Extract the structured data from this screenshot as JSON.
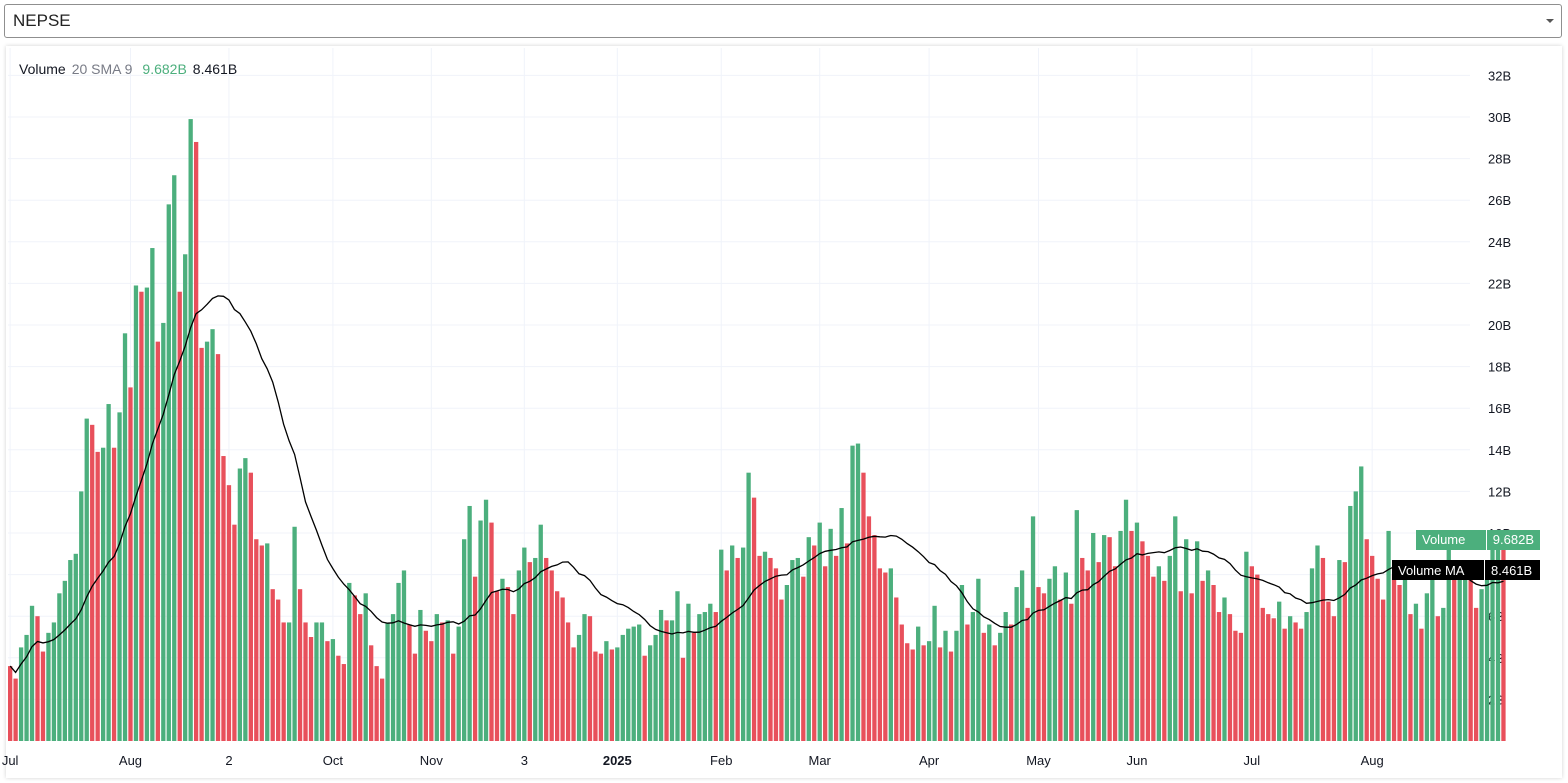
{
  "selector": {
    "value": "NEPSE",
    "icon": "chevron-down-icon"
  },
  "legend": {
    "title": "Volume",
    "params": "20 SMA 9",
    "volume_value": "9.682B",
    "ma_value": "8.461B"
  },
  "labels": {
    "volume_label": "Volume",
    "volume_value": "9.682B",
    "ma_label": "Volume MA",
    "ma_value": "8.461B"
  },
  "colors": {
    "up": "#4caf7d",
    "down": "#e8505b",
    "ma_line": "#000000",
    "grid": "#f0f3fa",
    "ma_label_bg": "#000000"
  },
  "chart_data": {
    "type": "bar",
    "title": "Volume",
    "ylim": [
      0,
      32
    ],
    "y_unit": "B",
    "y_ticks": [
      "2B",
      "4B",
      "6B",
      "8B",
      "10B",
      "12B",
      "14B",
      "16B",
      "18B",
      "20B",
      "22B",
      "24B",
      "26B",
      "28B",
      "30B",
      "32B"
    ],
    "x_ticks": [
      {
        "label": "Jul",
        "index": 0
      },
      {
        "label": "Aug",
        "index": 22
      },
      {
        "label": "2",
        "index": 40
      },
      {
        "label": "Oct",
        "index": 59
      },
      {
        "label": "Nov",
        "index": 77
      },
      {
        "label": "3",
        "index": 94
      },
      {
        "label": "2025",
        "index": 111,
        "bold": true
      },
      {
        "label": "Feb",
        "index": 130
      },
      {
        "label": "Mar",
        "index": 148
      },
      {
        "label": "Apr",
        "index": 168
      },
      {
        "label": "May",
        "index": 188
      },
      {
        "label": "Jun",
        "index": 206
      },
      {
        "label": "Jul",
        "index": 227
      },
      {
        "label": "Aug",
        "index": 249
      }
    ],
    "grid": true,
    "series": [
      {
        "name": "Volume",
        "values": [
          3.6,
          3.0,
          4.5,
          5.1,
          6.5,
          6.0,
          4.3,
          5.2,
          5.7,
          7.1,
          7.7,
          8.7,
          9.0,
          12.0,
          15.5,
          15.2,
          13.9,
          14.1,
          16.2,
          14.1,
          15.8,
          19.6,
          17.0,
          21.9,
          21.6,
          21.8,
          23.7,
          19.2,
          20.1,
          25.8,
          27.2,
          21.6,
          23.4,
          29.9,
          28.8,
          18.9,
          19.2,
          19.8,
          18.6,
          13.7,
          12.3,
          10.4,
          13.1,
          13.6,
          12.9,
          9.7,
          9.4,
          9.5,
          7.3,
          6.8,
          5.7,
          5.7,
          10.3,
          7.3,
          5.7,
          5.0,
          5.7,
          5.7,
          4.8,
          4.9,
          4.1,
          3.7,
          7.6,
          7.0,
          6.1,
          7.1,
          4.6,
          3.6,
          3.0,
          5.7,
          6.1,
          7.6,
          8.2,
          5.6,
          4.2,
          6.3,
          5.3,
          4.8,
          6.1,
          5.7,
          5.8,
          4.2,
          5.5,
          9.7,
          11.3,
          7.9,
          10.6,
          11.6,
          10.5,
          7.2,
          7.8,
          7.4,
          6.1,
          8.2,
          9.3,
          8.6,
          8.8,
          10.4,
          8.8,
          8.2,
          7.2,
          6.9,
          5.7,
          4.5,
          5.1,
          6.1,
          6.0,
          4.3,
          4.2,
          4.8,
          4.4,
          4.5,
          5.1,
          5.4,
          5.5,
          5.6,
          4.1,
          4.6,
          5.1,
          6.3,
          5.8,
          5.8,
          7.2,
          4.0,
          6.6,
          5.2,
          6.1,
          6.2,
          6.6,
          6.2,
          9.2,
          8.2,
          9.4,
          8.8,
          9.3,
          12.9,
          11.7,
          8.9,
          9.1,
          8.8,
          8.3,
          6.8,
          7.5,
          8.7,
          8.8,
          7.9,
          9.8,
          9.4,
          10.5,
          8.4,
          10.2,
          8.9,
          11.2,
          9.5,
          14.2,
          14.3,
          12.9,
          10.8,
          9.9,
          8.3,
          8.1,
          8.3,
          6.9,
          5.6,
          4.7,
          4.4,
          5.5,
          4.6,
          4.8,
          6.5,
          4.5,
          5.3,
          4.3,
          5.3,
          7.5,
          5.6,
          6.2,
          7.8,
          5.2,
          5.6,
          4.6,
          5.2,
          6.2,
          5.6,
          7.4,
          8.2,
          6.4,
          10.8,
          7.4,
          7.1,
          7.8,
          8.4,
          6.8,
          8.1,
          6.6,
          11.1,
          8.8,
          8.2,
          10.0,
          8.6,
          9.9,
          9.8,
          8.4,
          10.1,
          11.6,
          10.1,
          10.5,
          9.6,
          8.9,
          7.9,
          8.4,
          7.7,
          8.9,
          10.8,
          7.2,
          9.7,
          7.1,
          9.6,
          7.7,
          8.2,
          7.5,
          6.2,
          6.9,
          6.1,
          5.3,
          5.2,
          9.1,
          8.4,
          8.0,
          6.4,
          6.1,
          5.9,
          6.7,
          5.4,
          6.0,
          5.7,
          5.4,
          6.2,
          8.3,
          9.4,
          8.8,
          6.7,
          6.0,
          8.7,
          8.6,
          11.3,
          12.0,
          13.2,
          9.7,
          8.9,
          7.8,
          6.8,
          10.1,
          8.0,
          7.5,
          8.0,
          6.1,
          6.6,
          5.4,
          7.1,
          8.0,
          6.0,
          6.4,
          9.2,
          8.1,
          8.2,
          8.4,
          7.9,
          6.4,
          7.3,
          8.2,
          9.5,
          9.8,
          9.6
        ]
      }
    ]
  }
}
